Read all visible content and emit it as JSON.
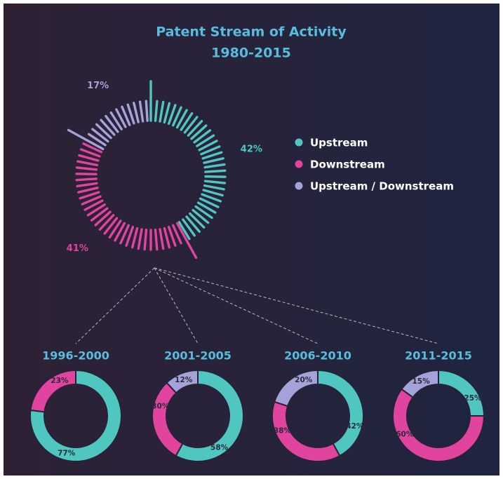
{
  "chart_data": [
    {
      "type": "radial",
      "title": "Patent Stream of Activity",
      "subtitle": "1980-2015",
      "categories": [
        "Upstream",
        "Downstream",
        "Upstream / Downstream"
      ],
      "values": [
        42,
        41,
        17
      ],
      "value_labels": [
        "42%",
        "41%",
        "17%"
      ],
      "colors": [
        "#4fc6c0",
        "#e0449e",
        "#a5a2d9"
      ]
    },
    {
      "type": "donut",
      "title": "1996-2000",
      "values": [
        77,
        23
      ],
      "value_labels": [
        "77%",
        "23%"
      ],
      "colors": [
        "#4fc6c0",
        "#e0449e"
      ]
    },
    {
      "type": "donut",
      "title": "2001-2005",
      "values": [
        58,
        30,
        12
      ],
      "value_labels": [
        "58%",
        "30%",
        "12%"
      ],
      "colors": [
        "#4fc6c0",
        "#e0449e",
        "#a5a2d9"
      ]
    },
    {
      "type": "donut",
      "title": "2006-2010",
      "values": [
        42,
        38,
        20
      ],
      "value_labels": [
        "42%",
        "38%",
        "20%"
      ],
      "colors": [
        "#4fc6c0",
        "#e0449e",
        "#a5a2d9"
      ]
    },
    {
      "type": "donut",
      "title": "2011-2015",
      "values": [
        25,
        60,
        15
      ],
      "value_labels": [
        "25%",
        "60%",
        "15%"
      ],
      "colors": [
        "#4fc6c0",
        "#e0449e",
        "#a5a2d9"
      ]
    }
  ]
}
